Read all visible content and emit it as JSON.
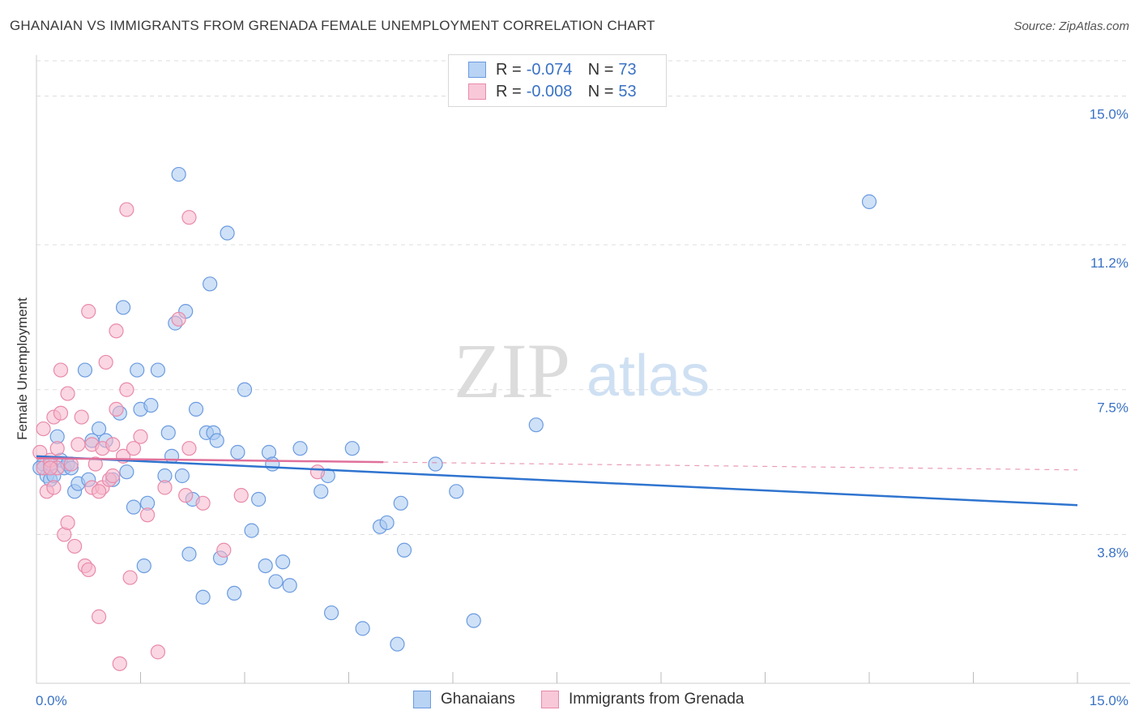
{
  "header": {
    "title": "GHANAIAN VS IMMIGRANTS FROM GRENADA FEMALE UNEMPLOYMENT CORRELATION CHART",
    "source": "Source: ZipAtlas.com"
  },
  "watermark": {
    "zip": "ZIP",
    "atlas": "atlas"
  },
  "legend": {
    "rows": [
      {
        "r_label": "R =",
        "r_value": "-0.074",
        "n_label": "N =",
        "n_value": "73"
      },
      {
        "r_label": "R =",
        "r_value": "-0.008",
        "n_label": "N =",
        "n_value": "53"
      }
    ]
  },
  "bottom_legend": {
    "series1": "Ghanaians",
    "series2": "Immigrants from Grenada"
  },
  "colors": {
    "blue_fill": "#a8c8f0",
    "blue_stroke": "#6b9be0",
    "blue_line": "#2f74cf",
    "pink_fill": "#f5b6cb",
    "pink_stroke": "#e98aaa",
    "pink_line": "#e0709a",
    "tick_label": "#3a72c4",
    "grid": "#dddddd"
  },
  "chart_data": {
    "type": "scatter",
    "title": "GHANAIAN VS IMMIGRANTS FROM GRENADA FEMALE UNEMPLOYMENT CORRELATION CHART",
    "xlabel": "",
    "ylabel": "Female Unemployment",
    "xlim": [
      0,
      15
    ],
    "ylim": [
      0,
      15.9
    ],
    "x_tick_labels": [
      "0.0%",
      "15.0%"
    ],
    "y_ticks": [
      3.8,
      7.5,
      11.2,
      15.0
    ],
    "y_tick_labels": [
      "3.8%",
      "7.5%",
      "11.2%",
      "15.0%"
    ],
    "series": [
      {
        "name": "Ghanaians",
        "r": -0.074,
        "n": 73,
        "trend": {
          "x": [
            0,
            15
          ],
          "y": [
            5.8,
            4.55
          ],
          "dashed_extension_to": null
        },
        "points": [
          [
            0.1,
            5.6
          ],
          [
            0.15,
            5.3
          ],
          [
            0.2,
            5.2
          ],
          [
            0.25,
            5.3
          ],
          [
            0.3,
            6.3
          ],
          [
            0.35,
            5.7
          ],
          [
            0.4,
            5.5
          ],
          [
            0.45,
            5.6
          ],
          [
            0.5,
            5.5
          ],
          [
            0.55,
            4.9
          ],
          [
            0.6,
            5.1
          ],
          [
            0.7,
            8.0
          ],
          [
            0.75,
            5.2
          ],
          [
            0.8,
            6.2
          ],
          [
            0.9,
            6.5
          ],
          [
            1.0,
            6.2
          ],
          [
            1.1,
            5.2
          ],
          [
            1.2,
            6.9
          ],
          [
            1.25,
            9.6
          ],
          [
            1.3,
            5.4
          ],
          [
            1.4,
            4.5
          ],
          [
            1.45,
            8.0
          ],
          [
            1.5,
            7.0
          ],
          [
            1.55,
            3.0
          ],
          [
            1.6,
            4.6
          ],
          [
            1.65,
            7.1
          ],
          [
            1.75,
            8.0
          ],
          [
            1.85,
            5.3
          ],
          [
            1.9,
            6.4
          ],
          [
            1.95,
            5.8
          ],
          [
            2.0,
            9.2
          ],
          [
            2.05,
            13.0
          ],
          [
            2.1,
            5.3
          ],
          [
            2.15,
            9.5
          ],
          [
            2.2,
            3.3
          ],
          [
            2.25,
            4.7
          ],
          [
            2.3,
            7.0
          ],
          [
            2.4,
            2.2
          ],
          [
            2.45,
            6.4
          ],
          [
            2.5,
            10.2
          ],
          [
            2.55,
            6.4
          ],
          [
            2.6,
            6.2
          ],
          [
            2.65,
            3.2
          ],
          [
            2.75,
            11.5
          ],
          [
            2.85,
            2.3
          ],
          [
            2.9,
            5.9
          ],
          [
            3.0,
            7.5
          ],
          [
            3.1,
            3.9
          ],
          [
            3.2,
            4.7
          ],
          [
            3.3,
            3.0
          ],
          [
            3.35,
            5.9
          ],
          [
            3.4,
            5.6
          ],
          [
            3.45,
            2.6
          ],
          [
            3.55,
            3.1
          ],
          [
            3.65,
            2.5
          ],
          [
            3.8,
            6.0
          ],
          [
            4.1,
            4.9
          ],
          [
            4.2,
            5.3
          ],
          [
            4.25,
            1.8
          ],
          [
            4.55,
            6.0
          ],
          [
            4.7,
            1.4
          ],
          [
            4.95,
            4.0
          ],
          [
            5.05,
            4.1
          ],
          [
            5.2,
            1.0
          ],
          [
            5.25,
            4.6
          ],
          [
            5.3,
            3.4
          ],
          [
            5.75,
            5.6
          ],
          [
            6.05,
            4.9
          ],
          [
            6.3,
            1.6
          ],
          [
            7.2,
            6.6
          ],
          [
            12.0,
            12.3
          ],
          [
            0.05,
            5.5
          ],
          [
            0.2,
            5.6
          ]
        ]
      },
      {
        "name": "Immigrants from Grenada",
        "r": -0.008,
        "n": 53,
        "trend": {
          "x": [
            0,
            5.0
          ],
          "y": [
            5.75,
            5.65
          ],
          "dashed_extension_to": [
            15,
            5.45
          ]
        },
        "points": [
          [
            0.05,
            5.9
          ],
          [
            0.1,
            5.5
          ],
          [
            0.1,
            6.5
          ],
          [
            0.15,
            4.9
          ],
          [
            0.2,
            5.7
          ],
          [
            0.25,
            6.8
          ],
          [
            0.3,
            6.0
          ],
          [
            0.3,
            5.5
          ],
          [
            0.35,
            6.9
          ],
          [
            0.35,
            8.0
          ],
          [
            0.4,
            3.8
          ],
          [
            0.45,
            7.4
          ],
          [
            0.45,
            4.1
          ],
          [
            0.5,
            5.6
          ],
          [
            0.55,
            3.5
          ],
          [
            0.6,
            6.1
          ],
          [
            0.65,
            6.8
          ],
          [
            0.7,
            3.0
          ],
          [
            0.75,
            2.9
          ],
          [
            0.75,
            9.5
          ],
          [
            0.8,
            5.0
          ],
          [
            0.8,
            6.1
          ],
          [
            0.85,
            5.6
          ],
          [
            0.9,
            1.7
          ],
          [
            0.95,
            5.0
          ],
          [
            0.95,
            6.0
          ],
          [
            1.0,
            8.2
          ],
          [
            1.05,
            5.2
          ],
          [
            1.1,
            6.1
          ],
          [
            1.15,
            9.0
          ],
          [
            1.15,
            7.0
          ],
          [
            1.2,
            0.5
          ],
          [
            1.25,
            5.8
          ],
          [
            1.3,
            7.5
          ],
          [
            1.3,
            12.1
          ],
          [
            1.35,
            2.7
          ],
          [
            1.4,
            6.0
          ],
          [
            1.5,
            6.3
          ],
          [
            1.6,
            4.3
          ],
          [
            1.75,
            0.8
          ],
          [
            1.85,
            5.0
          ],
          [
            2.05,
            9.3
          ],
          [
            2.15,
            4.8
          ],
          [
            2.2,
            6.0
          ],
          [
            2.2,
            11.9
          ],
          [
            2.4,
            4.6
          ],
          [
            2.7,
            3.4
          ],
          [
            2.95,
            4.8
          ],
          [
            4.05,
            5.4
          ],
          [
            0.2,
            5.5
          ],
          [
            0.25,
            5.0
          ],
          [
            0.9,
            4.9
          ],
          [
            1.1,
            5.3
          ]
        ]
      }
    ]
  }
}
